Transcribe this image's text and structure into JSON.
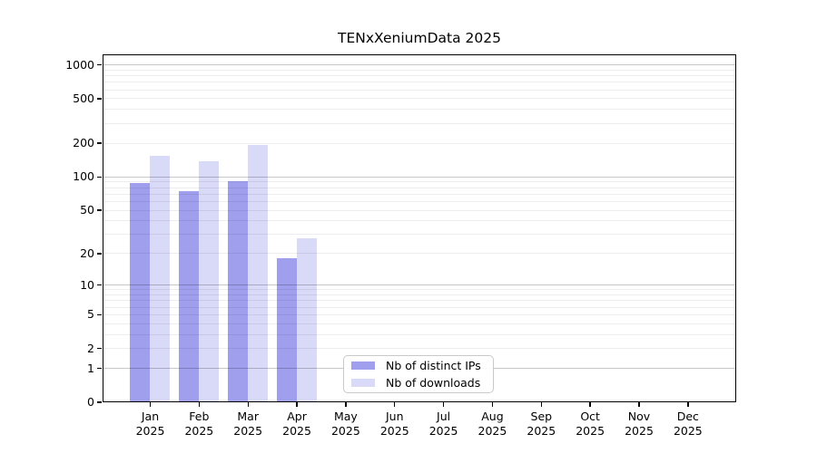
{
  "chart_data": {
    "type": "bar",
    "title": "TENxXeniumData 2025",
    "months": [
      {
        "month": "Jan",
        "year": "2025"
      },
      {
        "month": "Feb",
        "year": "2025"
      },
      {
        "month": "Mar",
        "year": "2025"
      },
      {
        "month": "Apr",
        "year": "2025"
      },
      {
        "month": "May",
        "year": "2025"
      },
      {
        "month": "Jun",
        "year": "2025"
      },
      {
        "month": "Jul",
        "year": "2025"
      },
      {
        "month": "Aug",
        "year": "2025"
      },
      {
        "month": "Sep",
        "year": "2025"
      },
      {
        "month": "Oct",
        "year": "2025"
      },
      {
        "month": "Nov",
        "year": "2025"
      },
      {
        "month": "Dec",
        "year": "2025"
      }
    ],
    "series": [
      {
        "name": "Nb of distinct IPs",
        "color": "#9f9fee",
        "values": [
          88,
          74,
          92,
          18,
          null,
          null,
          null,
          null,
          null,
          null,
          null,
          null
        ]
      },
      {
        "name": "Nb of downloads",
        "color": "#d9d9f8",
        "values": [
          155,
          138,
          195,
          28,
          null,
          null,
          null,
          null,
          null,
          null,
          null,
          null
        ]
      }
    ],
    "y_scale": "log1p",
    "ylim": [
      0,
      1240
    ],
    "y_ticks": [
      0,
      1,
      2,
      5,
      10,
      20,
      50,
      100,
      200,
      500,
      1000
    ],
    "grid": {
      "major_lines": [
        1,
        10,
        100,
        1000
      ],
      "minor_lines": [
        2,
        3,
        4,
        5,
        6,
        7,
        8,
        9,
        20,
        30,
        40,
        50,
        60,
        70,
        80,
        90,
        200,
        300,
        400,
        500,
        600,
        700,
        800,
        900
      ]
    },
    "legend_position": "lower center"
  }
}
